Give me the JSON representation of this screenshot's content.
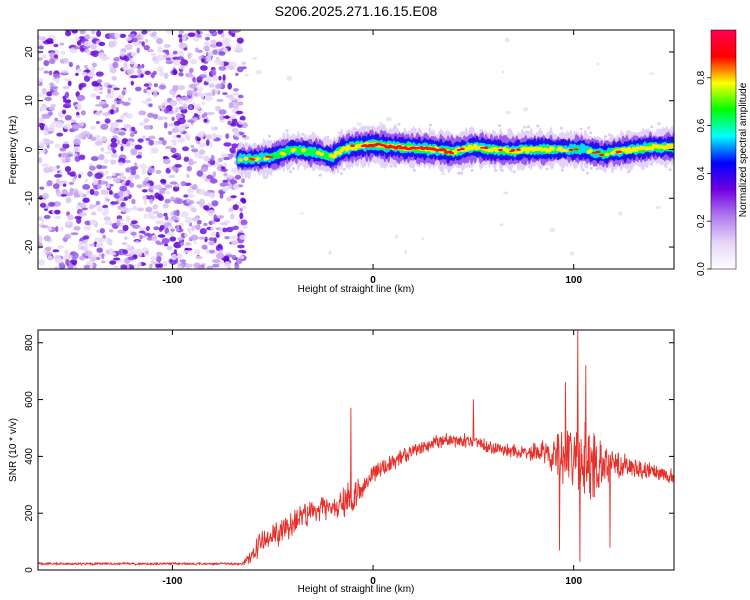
{
  "title": "S206.2025.271.16.15.E08",
  "chart_data": [
    {
      "type": "heatmap",
      "name": "spectrogram",
      "xlabel": "Height of straight line (km)",
      "ylabel": "Frequency (Hz)",
      "xlim": [
        -167,
        150
      ],
      "ylim": [
        -24.5,
        24.5
      ],
      "x_ticks": [
        -100,
        0,
        100
      ],
      "x_tick_labels": [
        "-100",
        "0",
        "100"
      ],
      "y_ticks": [
        -20,
        -10,
        0,
        10,
        20
      ],
      "y_tick_labels": [
        "-20",
        "-10",
        "0",
        "10",
        "20"
      ],
      "noise_region_x": [
        -167,
        -67
      ],
      "signal_start_x": -67,
      "signal_track": {
        "x": [
          -67,
          -60,
          -50,
          -40,
          -30,
          -25,
          -20,
          -15,
          -10,
          0,
          10,
          20,
          30,
          40,
          50,
          60,
          70,
          80,
          90,
          95,
          100,
          105,
          110,
          115,
          120,
          130,
          140,
          150
        ],
        "freq": [
          -2,
          -2,
          -1.5,
          0,
          -0.5,
          -1,
          -1.5,
          0,
          0.5,
          1,
          0.5,
          0.3,
          0,
          -0.5,
          0.5,
          0,
          -0.3,
          0,
          0,
          0,
          0,
          0,
          -0.5,
          -1,
          -0.5,
          0,
          0.5,
          0.5
        ]
      },
      "colorbar": {
        "label": "Normalized spectral amplitude",
        "range": [
          0,
          1
        ],
        "ticks": [
          0.0,
          0.2,
          0.4,
          0.6,
          0.8
        ],
        "tick_labels": [
          "0.0",
          "0.2",
          "0.4",
          "0.6",
          "0.8"
        ],
        "colors": [
          "#ffffff",
          "#e6d5f7",
          "#b07af0",
          "#7000e0",
          "#0000ff",
          "#00ffff",
          "#00ff00",
          "#ffff00",
          "#ff0000",
          "#ff0050"
        ]
      }
    },
    {
      "type": "line",
      "name": "snr",
      "xlabel": "Height of straight line (km)",
      "ylabel": "SNR (10 * v/v)",
      "xlim": [
        -167,
        150
      ],
      "ylim": [
        0,
        845
      ],
      "x_ticks": [
        -100,
        0,
        100
      ],
      "x_tick_labels": [
        "-100",
        "0",
        "100"
      ],
      "y_ticks": [
        0,
        200,
        400,
        600,
        800
      ],
      "y_tick_labels": [
        "0",
        "200",
        "400",
        "600",
        "800"
      ],
      "color": "#e8302a",
      "envelope": {
        "x": [
          -167,
          -65,
          -60,
          -55,
          -50,
          -45,
          -40,
          -35,
          -30,
          -25,
          -20,
          -15,
          -10,
          -5,
          0,
          10,
          20,
          30,
          40,
          50,
          60,
          70,
          80,
          90,
          100,
          110,
          120,
          130,
          140,
          150
        ],
        "mean": [
          22,
          22,
          60,
          100,
          120,
          140,
          165,
          190,
          205,
          215,
          225,
          240,
          255,
          290,
          335,
          380,
          420,
          445,
          460,
          450,
          430,
          420,
          415,
          410,
          400,
          380,
          370,
          355,
          345,
          330
        ],
        "spread": [
          8,
          8,
          60,
          70,
          70,
          70,
          80,
          80,
          70,
          70,
          70,
          90,
          90,
          60,
          50,
          45,
          45,
          45,
          45,
          40,
          40,
          40,
          50,
          110,
          220,
          200,
          90,
          60,
          50,
          50
        ]
      },
      "spikes": [
        {
          "x": -11,
          "y": 570
        },
        {
          "x": 50,
          "y": 600
        },
        {
          "x": 93,
          "y": 70
        },
        {
          "x": 96,
          "y": 660
        },
        {
          "x": 102,
          "y": 845
        },
        {
          "x": 103,
          "y": 30
        },
        {
          "x": 106,
          "y": 720
        },
        {
          "x": 118,
          "y": 80
        }
      ]
    }
  ]
}
